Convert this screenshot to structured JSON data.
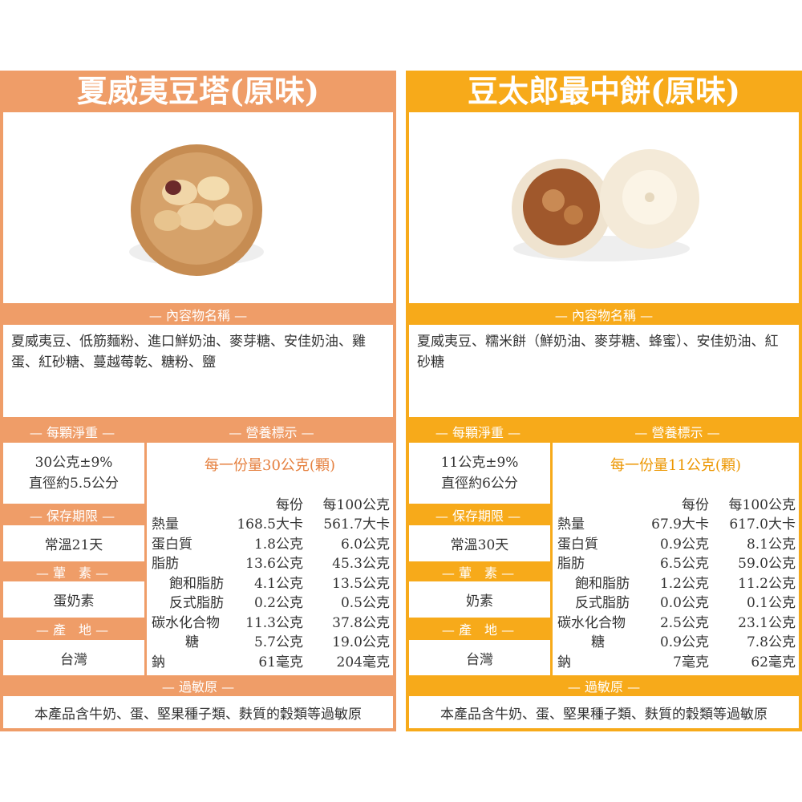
{
  "products": [
    {
      "title": "夏威夷豆塔(原味)",
      "ingredients_heading": "— 內容物名稱 —",
      "ingredients": "夏威夷豆、低筋麵粉、進口鮮奶油、麥芽糖、安佳奶油、雞蛋、紅砂糖、蔓越莓乾、糖粉、鹽",
      "net_weight_heading": "— 每顆淨重 —",
      "net_weight": [
        "30公克±9%",
        "直徑約5.5公分"
      ],
      "shelf_life_heading": "— 保存期限 —",
      "shelf_life": "常溫21天",
      "diet_heading": "— 葷　素 —",
      "diet": "蛋奶素",
      "origin_heading": "— 產　地 —",
      "origin": "台灣",
      "nutrition_heading": "— 營養標示 —",
      "serving": "每一份量30公克(顆)",
      "nutrition_columns": [
        "每份",
        "每100公克"
      ],
      "nutrition_rows": [
        [
          "熱量",
          "168.5大卡",
          "561.7大卡"
        ],
        [
          "蛋白質",
          "1.8公克",
          "6.0公克"
        ],
        [
          "脂肪",
          "13.6公克",
          "45.3公克"
        ],
        [
          "飽和脂肪",
          "4.1公克",
          "13.5公克"
        ],
        [
          "反式脂肪",
          "0.2公克",
          "0.5公克"
        ],
        [
          "碳水化合物",
          "11.3公克",
          "37.8公克"
        ],
        [
          "糖",
          "5.7公克",
          "19.0公克"
        ],
        [
          "鈉",
          "61毫克",
          "204毫克"
        ]
      ],
      "allergen_heading": "— 過敏原 —",
      "allergen": "本產品含牛奶、蛋、堅果種子類、麩質的穀類等過敏原"
    },
    {
      "title": "豆太郎最中餅(原味)",
      "ingredients_heading": "— 內容物名稱 —",
      "ingredients": "夏威夷豆、糯米餅（鮮奶油、麥芽糖、蜂蜜）、安佳奶油、紅砂糖",
      "net_weight_heading": "— 每顆淨重 —",
      "net_weight": [
        "11公克±9%",
        "直徑約6公分"
      ],
      "shelf_life_heading": "— 保存期限 —",
      "shelf_life": "常溫30天",
      "diet_heading": "— 葷　素 —",
      "diet": "奶素",
      "origin_heading": "— 產　地 —",
      "origin": "台灣",
      "nutrition_heading": "— 營養標示 —",
      "serving": "每一份量11公克(顆)",
      "nutrition_columns": [
        "每份",
        "每100公克"
      ],
      "nutrition_rows": [
        [
          "熱量",
          "67.9大卡",
          "617.0大卡"
        ],
        [
          "蛋白質",
          "0.9公克",
          "8.1公克"
        ],
        [
          "脂肪",
          "6.5公克",
          "59.0公克"
        ],
        [
          "飽和脂肪",
          "1.2公克",
          "11.2公克"
        ],
        [
          "反式脂肪",
          "0.0公克",
          "0.1公克"
        ],
        [
          "碳水化合物",
          "2.5公克",
          "23.1公克"
        ],
        [
          "糖",
          "0.9公克",
          "7.8公克"
        ],
        [
          "鈉",
          "7毫克",
          "62毫克"
        ]
      ],
      "allergen_heading": "— 過敏原 —",
      "allergen": "本產品含牛奶、蛋、堅果種子類、麩質的穀類等過敏原"
    }
  ]
}
